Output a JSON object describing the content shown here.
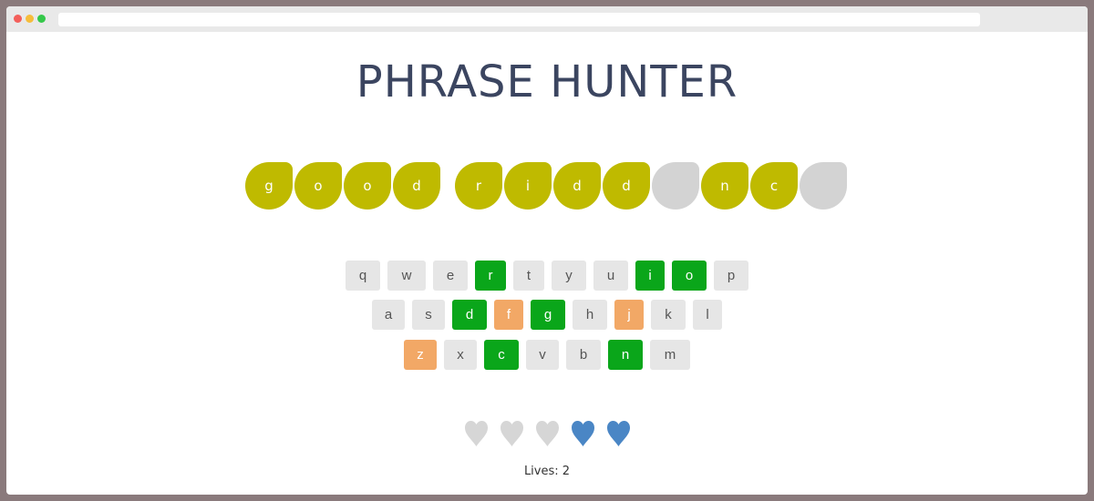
{
  "title": "PHRASE HUNTER",
  "colors": {
    "revealed": "#bfba00",
    "hidden": "#d3d3d3",
    "key_default": "#e6e6e6",
    "key_chosen": "#0aa61a",
    "key_wrong": "#f2a866",
    "heart_lost": "#d6d6d6",
    "heart_live": "#4a86c5"
  },
  "phrase": [
    {
      "char": "g",
      "state": "shown"
    },
    {
      "char": "o",
      "state": "shown"
    },
    {
      "char": "o",
      "state": "shown"
    },
    {
      "char": "d",
      "state": "shown"
    },
    {
      "char": " ",
      "state": "space"
    },
    {
      "char": "r",
      "state": "shown"
    },
    {
      "char": "i",
      "state": "shown"
    },
    {
      "char": "d",
      "state": "shown"
    },
    {
      "char": "d",
      "state": "shown"
    },
    {
      "char": "",
      "state": "hidden"
    },
    {
      "char": "n",
      "state": "shown"
    },
    {
      "char": "c",
      "state": "shown"
    },
    {
      "char": "",
      "state": "hidden"
    }
  ],
  "keyboard": {
    "row1": [
      {
        "label": "q",
        "state": "default"
      },
      {
        "label": "w",
        "state": "default"
      },
      {
        "label": "e",
        "state": "default"
      },
      {
        "label": "r",
        "state": "chosen"
      },
      {
        "label": "t",
        "state": "default"
      },
      {
        "label": "y",
        "state": "default"
      },
      {
        "label": "u",
        "state": "default"
      },
      {
        "label": "i",
        "state": "chosen"
      },
      {
        "label": "o",
        "state": "chosen"
      },
      {
        "label": "p",
        "state": "default"
      }
    ],
    "row2": [
      {
        "label": "a",
        "state": "default"
      },
      {
        "label": "s",
        "state": "default"
      },
      {
        "label": "d",
        "state": "chosen"
      },
      {
        "label": "f",
        "state": "wrong"
      },
      {
        "label": "g",
        "state": "chosen"
      },
      {
        "label": "h",
        "state": "default"
      },
      {
        "label": "j",
        "state": "wrong"
      },
      {
        "label": "k",
        "state": "default"
      },
      {
        "label": "l",
        "state": "default"
      }
    ],
    "row3": [
      {
        "label": "z",
        "state": "wrong"
      },
      {
        "label": "x",
        "state": "default"
      },
      {
        "label": "c",
        "state": "chosen"
      },
      {
        "label": "v",
        "state": "default"
      },
      {
        "label": "b",
        "state": "default"
      },
      {
        "label": "n",
        "state": "chosen"
      },
      {
        "label": "m",
        "state": "default"
      }
    ]
  },
  "hearts": [
    "lost",
    "lost",
    "lost",
    "live",
    "live"
  ],
  "lives_text": "Lives: 2"
}
